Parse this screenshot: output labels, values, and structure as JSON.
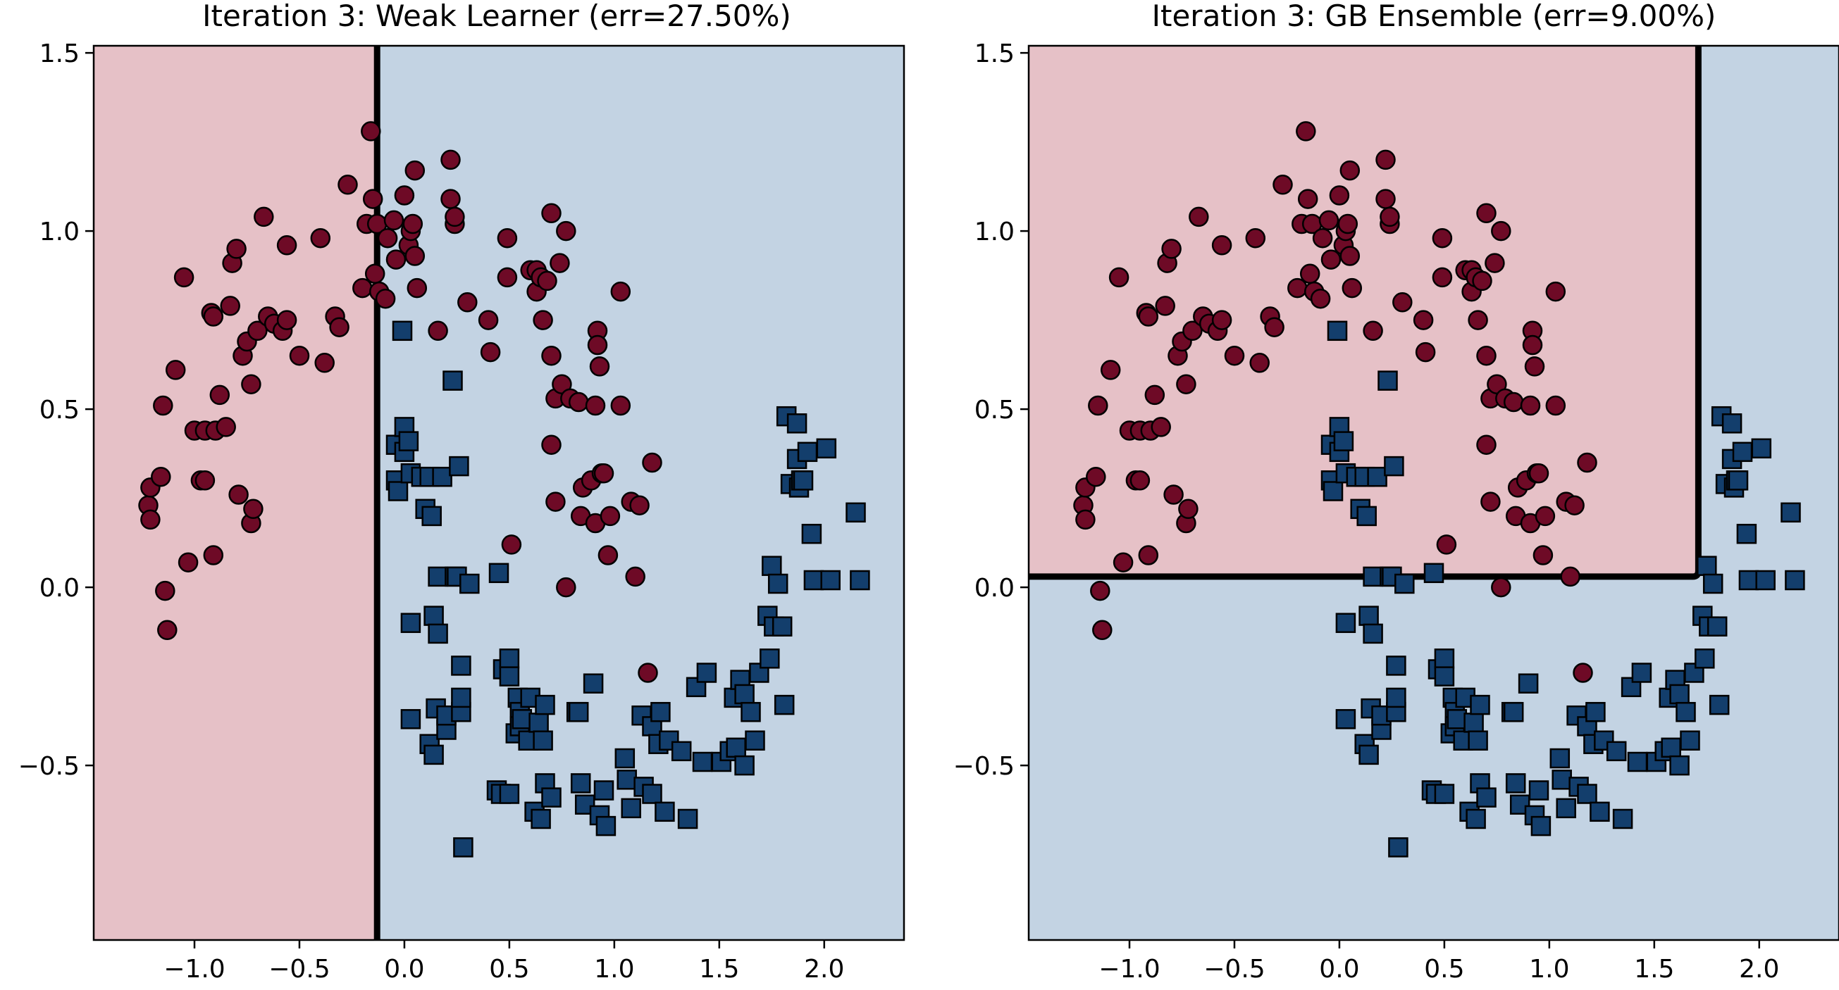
{
  "colors": {
    "class0_region": "#e6c1c7",
    "class1_region": "#c3d3e3",
    "class0_marker": "#6e0a26",
    "class1_marker": "#133e6c",
    "boundary": "#000000"
  },
  "chart_data": [
    {
      "type": "scatter",
      "title": "Iteration 3: Weak Learner (err=27.50%)",
      "xlim": [
        -1.48,
        2.38
      ],
      "ylim": [
        -0.99,
        1.52
      ],
      "xticks": [
        "−1.0",
        "−0.5",
        "0.0",
        "0.5",
        "1.0",
        "1.5",
        "2.0"
      ],
      "yticks": [
        "−0.5",
        "0.0",
        "0.5",
        "1.0",
        "1.5"
      ],
      "decision": {
        "kind": "vertical",
        "x": -0.13,
        "left_class": 0,
        "right_class": 1
      }
    },
    {
      "type": "scatter",
      "title": "Iteration 3: GB Ensemble (err=9.00%)",
      "xlim": [
        -1.48,
        2.38
      ],
      "ylim": [
        -0.99,
        1.52
      ],
      "xticks": [
        "−1.0",
        "−0.5",
        "0.0",
        "0.5",
        "1.0",
        "1.5",
        "2.0"
      ],
      "yticks": [
        "−0.5",
        "0.0",
        "0.5",
        "1.0",
        "1.5"
      ],
      "decision": {
        "kind": "corner",
        "x": 1.71,
        "y": 0.03,
        "inside_class": 0,
        "outside_class": 1
      }
    }
  ],
  "points": {
    "class0": [
      [
        -1.22,
        0.23
      ],
      [
        -1.21,
        0.28
      ],
      [
        -1.21,
        0.19
      ],
      [
        -1.16,
        0.31
      ],
      [
        -1.15,
        0.51
      ],
      [
        -1.14,
        -0.01
      ],
      [
        -1.13,
        -0.12
      ],
      [
        -1.09,
        0.61
      ],
      [
        -1.05,
        0.87
      ],
      [
        -1.03,
        0.07
      ],
      [
        -1.0,
        0.44
      ],
      [
        -0.97,
        0.3
      ],
      [
        -0.95,
        0.3
      ],
      [
        -0.95,
        0.44
      ],
      [
        -0.92,
        0.77
      ],
      [
        -0.91,
        0.76
      ],
      [
        -0.91,
        0.09
      ],
      [
        -0.9,
        0.44
      ],
      [
        -0.88,
        0.54
      ],
      [
        -0.85,
        0.45
      ],
      [
        -0.83,
        0.79
      ],
      [
        -0.82,
        0.91
      ],
      [
        -0.8,
        0.95
      ],
      [
        -0.79,
        0.26
      ],
      [
        -0.77,
        0.65
      ],
      [
        -0.75,
        0.69
      ],
      [
        -0.73,
        0.57
      ],
      [
        -0.73,
        0.18
      ],
      [
        -0.72,
        0.22
      ],
      [
        -0.7,
        0.72
      ],
      [
        -0.67,
        1.04
      ],
      [
        -0.65,
        0.76
      ],
      [
        -0.62,
        0.74
      ],
      [
        -0.58,
        0.72
      ],
      [
        -0.56,
        0.75
      ],
      [
        -0.56,
        0.96
      ],
      [
        -0.5,
        0.65
      ],
      [
        -0.4,
        0.98
      ],
      [
        -0.38,
        0.63
      ],
      [
        -0.33,
        0.76
      ],
      [
        -0.31,
        0.73
      ],
      [
        -0.27,
        1.13
      ],
      [
        -0.2,
        0.84
      ],
      [
        -0.18,
        1.02
      ],
      [
        -0.16,
        1.28
      ],
      [
        -0.15,
        1.09
      ],
      [
        -0.14,
        0.88
      ],
      [
        -0.13,
        1.02
      ],
      [
        -0.12,
        0.83
      ],
      [
        -0.09,
        0.81
      ],
      [
        -0.08,
        0.98
      ],
      [
        -0.05,
        1.03
      ],
      [
        -0.04,
        0.92
      ],
      [
        0.0,
        1.1
      ],
      [
        0.02,
        0.96
      ],
      [
        0.03,
        1.0
      ],
      [
        0.04,
        1.02
      ],
      [
        0.05,
        0.93
      ],
      [
        0.05,
        1.17
      ],
      [
        0.06,
        0.84
      ],
      [
        0.16,
        0.72
      ],
      [
        0.22,
        1.2
      ],
      [
        0.22,
        1.09
      ],
      [
        0.24,
        1.02
      ],
      [
        0.24,
        1.04
      ],
      [
        0.3,
        0.8
      ],
      [
        0.4,
        0.75
      ],
      [
        0.41,
        0.66
      ],
      [
        0.49,
        0.98
      ],
      [
        0.49,
        0.87
      ],
      [
        0.51,
        0.12
      ],
      [
        0.6,
        0.89
      ],
      [
        0.63,
        0.89
      ],
      [
        0.63,
        0.83
      ],
      [
        0.65,
        0.87
      ],
      [
        0.66,
        0.75
      ],
      [
        0.68,
        0.86
      ],
      [
        0.7,
        0.65
      ],
      [
        0.7,
        0.4
      ],
      [
        0.7,
        1.05
      ],
      [
        0.72,
        0.53
      ],
      [
        0.72,
        0.24
      ],
      [
        0.74,
        0.91
      ],
      [
        0.75,
        0.57
      ],
      [
        0.77,
        1.0
      ],
      [
        0.77,
        0.0
      ],
      [
        0.79,
        0.53
      ],
      [
        0.83,
        0.52
      ],
      [
        0.84,
        0.2
      ],
      [
        0.85,
        0.28
      ],
      [
        0.89,
        0.3
      ],
      [
        0.91,
        0.51
      ],
      [
        0.91,
        0.18
      ],
      [
        0.92,
        0.72
      ],
      [
        0.92,
        0.68
      ],
      [
        0.93,
        0.62
      ],
      [
        0.94,
        0.32
      ],
      [
        0.95,
        0.32
      ],
      [
        0.97,
        0.09
      ],
      [
        0.98,
        0.2
      ],
      [
        1.03,
        0.51
      ],
      [
        1.03,
        0.83
      ],
      [
        1.08,
        0.24
      ],
      [
        1.1,
        0.03
      ],
      [
        1.12,
        0.23
      ],
      [
        1.16,
        -0.24
      ],
      [
        1.18,
        0.35
      ]
    ],
    "class1": [
      [
        -0.01,
        0.72
      ],
      [
        -0.04,
        0.4
      ],
      [
        -0.04,
        0.3
      ],
      [
        -0.03,
        0.27
      ],
      [
        0.0,
        0.45
      ],
      [
        0.0,
        0.38
      ],
      [
        0.02,
        0.41
      ],
      [
        0.03,
        0.32
      ],
      [
        0.03,
        -0.1
      ],
      [
        0.03,
        -0.37
      ],
      [
        0.08,
        0.31
      ],
      [
        0.1,
        0.22
      ],
      [
        0.12,
        0.31
      ],
      [
        0.12,
        -0.44
      ],
      [
        0.13,
        0.2
      ],
      [
        0.14,
        -0.08
      ],
      [
        0.14,
        -0.47
      ],
      [
        0.15,
        -0.34
      ],
      [
        0.16,
        0.03
      ],
      [
        0.16,
        -0.13
      ],
      [
        0.18,
        0.31
      ],
      [
        0.2,
        -0.4
      ],
      [
        0.2,
        -0.36
      ],
      [
        0.23,
        0.58
      ],
      [
        0.24,
        0.03
      ],
      [
        0.25,
        0.03
      ],
      [
        0.26,
        0.34
      ],
      [
        0.27,
        -0.22
      ],
      [
        0.27,
        -0.35
      ],
      [
        0.27,
        -0.31
      ],
      [
        0.28,
        -0.73
      ],
      [
        0.31,
        0.01
      ],
      [
        0.44,
        -0.57
      ],
      [
        0.45,
        0.04
      ],
      [
        0.46,
        -0.58
      ],
      [
        0.47,
        -0.23
      ],
      [
        0.5,
        -0.2
      ],
      [
        0.5,
        -0.25
      ],
      [
        0.5,
        -0.58
      ],
      [
        0.53,
        -0.41
      ],
      [
        0.54,
        -0.31
      ],
      [
        0.55,
        -0.35
      ],
      [
        0.55,
        -0.39
      ],
      [
        0.56,
        -0.37
      ],
      [
        0.59,
        -0.43
      ],
      [
        0.6,
        -0.31
      ],
      [
        0.62,
        -0.63
      ],
      [
        0.64,
        -0.38
      ],
      [
        0.65,
        -0.65
      ],
      [
        0.66,
        -0.43
      ],
      [
        0.67,
        -0.55
      ],
      [
        0.67,
        -0.33
      ],
      [
        0.7,
        -0.59
      ],
      [
        0.82,
        -0.35
      ],
      [
        0.83,
        -0.35
      ],
      [
        0.84,
        -0.55
      ],
      [
        0.86,
        -0.61
      ],
      [
        0.9,
        -0.27
      ],
      [
        0.93,
        -0.64
      ],
      [
        0.95,
        -0.57
      ],
      [
        0.96,
        -0.67
      ],
      [
        1.05,
        -0.48
      ],
      [
        1.06,
        -0.54
      ],
      [
        1.08,
        -0.62
      ],
      [
        1.13,
        -0.36
      ],
      [
        1.14,
        -0.56
      ],
      [
        1.18,
        -0.39
      ],
      [
        1.18,
        -0.58
      ],
      [
        1.21,
        -0.44
      ],
      [
        1.22,
        -0.35
      ],
      [
        1.24,
        -0.63
      ],
      [
        1.26,
        -0.43
      ],
      [
        1.32,
        -0.46
      ],
      [
        1.35,
        -0.65
      ],
      [
        1.39,
        -0.28
      ],
      [
        1.42,
        -0.49
      ],
      [
        1.44,
        -0.24
      ],
      [
        1.51,
        -0.49
      ],
      [
        1.55,
        -0.46
      ],
      [
        1.57,
        -0.31
      ],
      [
        1.58,
        -0.45
      ],
      [
        1.6,
        -0.26
      ],
      [
        1.62,
        -0.5
      ],
      [
        1.62,
        -0.3
      ],
      [
        1.65,
        -0.35
      ],
      [
        1.67,
        -0.43
      ],
      [
        1.69,
        -0.24
      ],
      [
        1.73,
        -0.08
      ],
      [
        1.74,
        -0.2
      ],
      [
        1.75,
        0.06
      ],
      [
        1.76,
        -0.11
      ],
      [
        1.78,
        0.01
      ],
      [
        1.8,
        -0.11
      ],
      [
        1.81,
        -0.33
      ],
      [
        1.82,
        0.48
      ],
      [
        1.84,
        0.29
      ],
      [
        1.87,
        0.46
      ],
      [
        1.87,
        0.36
      ],
      [
        1.88,
        0.28
      ],
      [
        1.89,
        0.3
      ],
      [
        1.9,
        0.3
      ],
      [
        1.92,
        0.38
      ],
      [
        1.94,
        0.15
      ],
      [
        1.95,
        0.02
      ],
      [
        2.01,
        0.39
      ],
      [
        2.03,
        0.02
      ],
      [
        2.15,
        0.21
      ],
      [
        2.17,
        0.02
      ]
    ]
  }
}
